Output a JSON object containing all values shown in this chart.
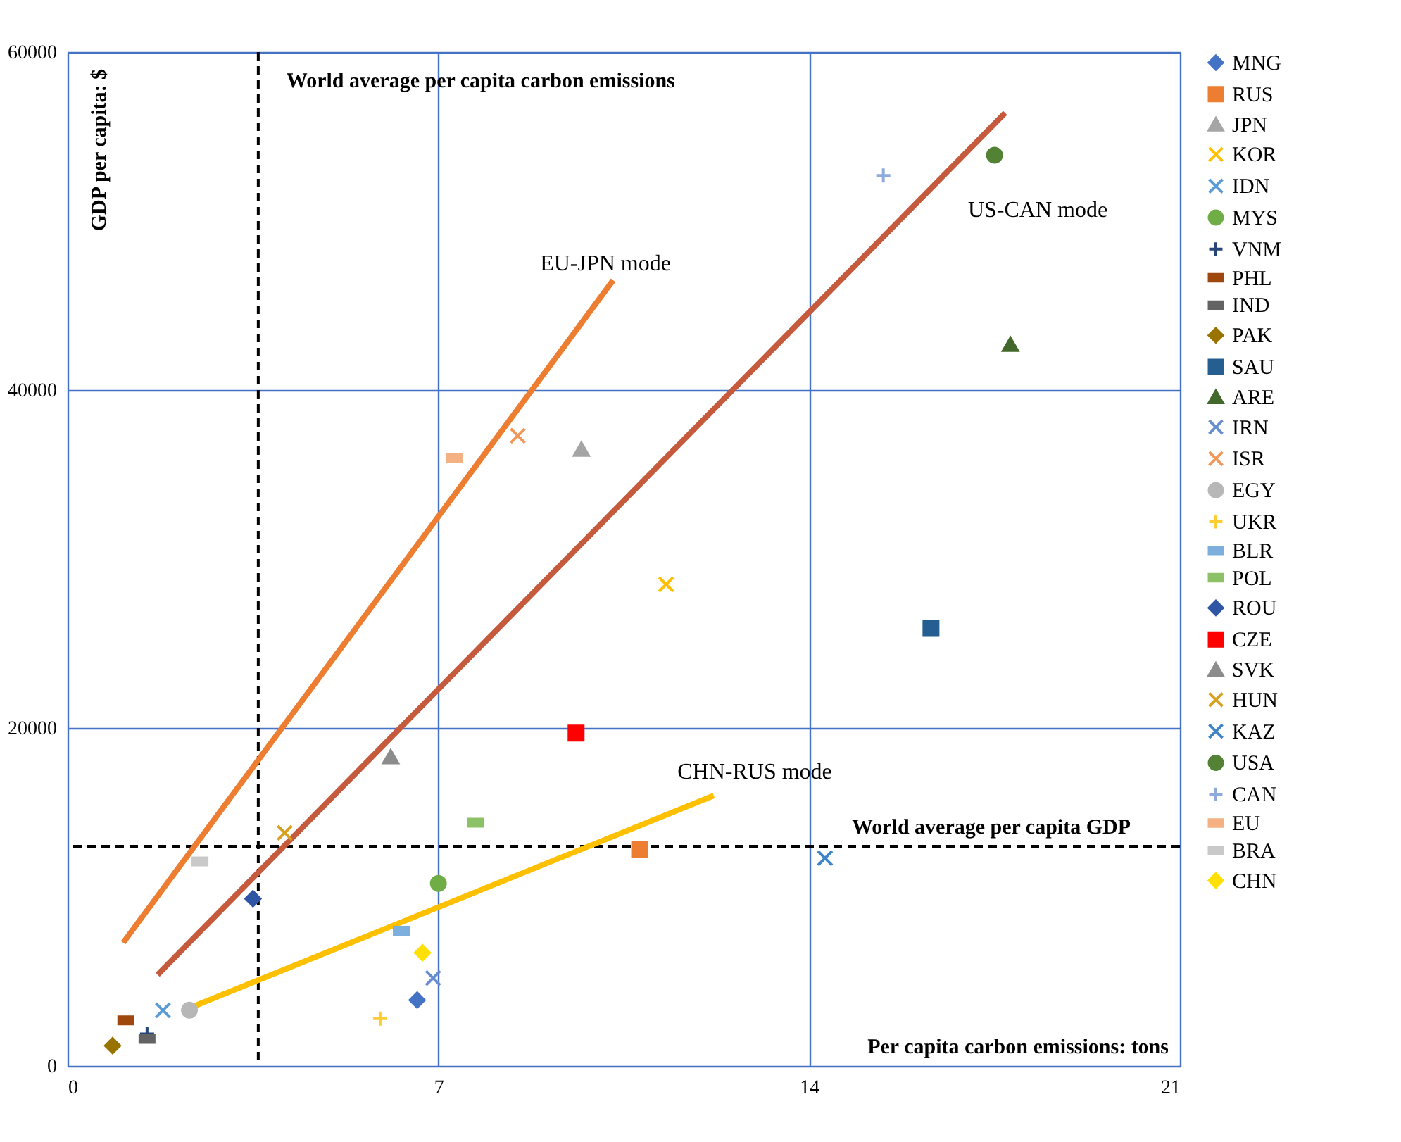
{
  "chart_data": {
    "type": "scatter",
    "xlabel": "Per capita carbon emissions: tons",
    "ylabel": "GDP per capita: $",
    "xlim": [
      0,
      21
    ],
    "xticks": [
      0,
      7,
      14,
      21
    ],
    "ylim": [
      0,
      60000
    ],
    "yticks": [
      0,
      20000,
      40000,
      60000
    ],
    "grid": true,
    "legend": "right",
    "series": [
      {
        "name": "MNG",
        "color": "#4472c4",
        "marker": "diamond",
        "x": [
          6.6
        ],
        "values": [
          3900
        ]
      },
      {
        "name": "RUS",
        "color": "#ed7d31",
        "marker": "square",
        "x": [
          10.8
        ],
        "values": [
          12800
        ]
      },
      {
        "name": "JPN",
        "color": "#a5a5a5",
        "marker": "triangle",
        "x": [
          9.7
        ],
        "values": [
          36500
        ]
      },
      {
        "name": "KOR",
        "color": "#ffc000",
        "marker": "cross",
        "x": [
          11.3
        ],
        "values": [
          28500
        ]
      },
      {
        "name": "IDN",
        "color": "#5b9bd5",
        "marker": "cross",
        "x": [
          1.8
        ],
        "values": [
          3300
        ]
      },
      {
        "name": "MYS",
        "color": "#70ad47",
        "marker": "circle",
        "x": [
          7.0
        ],
        "values": [
          10800
        ]
      },
      {
        "name": "VNM",
        "color": "#264478",
        "marker": "plus",
        "x": [
          1.5
        ],
        "values": [
          1900
        ]
      },
      {
        "name": "PHL",
        "color": "#9e480e",
        "x": [
          1.1
        ],
        "values": [
          2700
        ]
      },
      {
        "name": "IND",
        "color": "#636363",
        "x": [
          1.5
        ],
        "values": [
          1600
        ]
      },
      {
        "name": "PAK",
        "color": "#997300",
        "marker": "diamond",
        "x": [
          0.85
        ],
        "values": [
          1200
        ]
      },
      {
        "name": "SAU",
        "color": "#255e91",
        "marker": "square",
        "x": [
          16.3
        ],
        "values": [
          25900
        ]
      },
      {
        "name": "ARE",
        "color": "#43682b",
        "marker": "triangle",
        "x": [
          17.8
        ],
        "values": [
          42700
        ]
      },
      {
        "name": "IRN",
        "color": "#698ed0",
        "marker": "cross",
        "x": [
          6.9
        ],
        "values": [
          5200
        ]
      },
      {
        "name": "ISR",
        "color": "#f1975a",
        "marker": "cross",
        "x": [
          8.5
        ],
        "values": [
          37300
        ]
      },
      {
        "name": "EGY",
        "color": "#b7b7b7",
        "marker": "circle",
        "x": [
          2.3
        ],
        "values": [
          3300
        ]
      },
      {
        "name": "UKR",
        "color": "#ffcd33",
        "marker": "plus",
        "x": [
          5.9
        ],
        "values": [
          2800
        ]
      },
      {
        "name": "BLR",
        "color": "#7cafdd",
        "x": [
          6.3
        ],
        "values": [
          8000
        ]
      },
      {
        "name": "POL",
        "color": "#8cc168",
        "x": [
          7.7
        ],
        "values": [
          14400
        ]
      },
      {
        "name": "ROU",
        "color": "#2f55a4",
        "marker": "diamond",
        "x": [
          3.5
        ],
        "values": [
          9900
        ]
      },
      {
        "name": "CZE",
        "color": "#ff0000",
        "marker": "square",
        "x": [
          9.6
        ],
        "values": [
          19700
        ]
      },
      {
        "name": "SVK",
        "color": "#8c8c8c",
        "marker": "triangle",
        "x": [
          6.1
        ],
        "values": [
          18300
        ]
      },
      {
        "name": "HUN",
        "color": "#d9a020",
        "marker": "cross",
        "x": [
          4.1
        ],
        "values": [
          13800
        ]
      },
      {
        "name": "KAZ",
        "color": "#3d85c6",
        "marker": "cross",
        "x": [
          14.3
        ],
        "values": [
          12300
        ]
      },
      {
        "name": "USA",
        "color": "#548235",
        "marker": "circle",
        "x": [
          17.5
        ],
        "values": [
          53900
        ]
      },
      {
        "name": "CAN",
        "color": "#8faadc",
        "marker": "plus",
        "x": [
          15.4
        ],
        "values": [
          52700
        ]
      },
      {
        "name": "EU",
        "color": "#f4b183",
        "x": [
          7.3
        ],
        "values": [
          36000
        ]
      },
      {
        "name": "BRA",
        "color": "#c9c9c9",
        "x": [
          2.5
        ],
        "values": [
          12100
        ]
      },
      {
        "name": "CHN",
        "color": "#ffe000",
        "marker": "diamond",
        "x": [
          6.7
        ],
        "values": [
          6700
        ]
      },
      {
        "type": "line",
        "color": "#ed7d31",
        "x": [
          1.05,
          10.3
        ],
        "values": [
          7300,
          46500
        ]
      },
      {
        "type": "line",
        "color": "#c55a3c",
        "x": [
          1.7,
          17.7
        ],
        "values": [
          5400,
          56400
        ]
      },
      {
        "type": "line",
        "color": "#ffc000",
        "x": [
          2.2,
          12.2
        ],
        "values": [
          3300,
          16000
        ]
      }
    ],
    "ref_lines": [
      {
        "axis": "x",
        "value": 3.6,
        "label": "World average per capita carbon emissions",
        "color": "#000000",
        "line_style": "dashed"
      },
      {
        "axis": "y",
        "value": 13000,
        "label": "World average per capita GDP",
        "color": "#000000",
        "line_style": "dashed"
      }
    ],
    "annotations": [
      "EU-JPN mode",
      "US-CAN mode",
      "CHN-RUS mode"
    ]
  }
}
